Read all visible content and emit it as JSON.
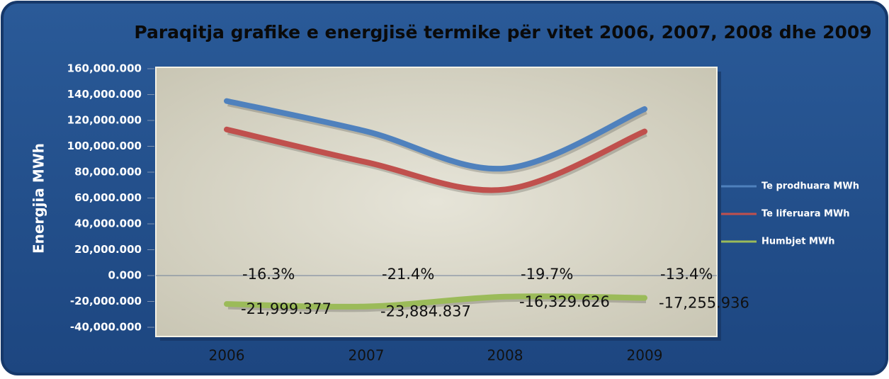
{
  "chart_data": {
    "type": "line",
    "title": "Paraqitja grafike e energjisë termike për vitet 2006, 2007, 2008 dhe 2009",
    "y_label": "Energjia MWh",
    "categories": [
      "2006",
      "2007",
      "2008",
      "2009"
    ],
    "series": [
      {
        "name": "Te prodhuara MWh",
        "color": "#4f81bd",
        "values": [
          135000,
          111600,
          82900,
          128800
        ]
      },
      {
        "name": "Te liferuara MWh",
        "color": "#c0504d",
        "values": [
          113000,
          87700,
          66600,
          111500
        ]
      },
      {
        "name": "Humbjet MWh",
        "color": "#9bbb59",
        "values": [
          -21999.377,
          -23884.837,
          -16329.626,
          -17255.936
        ],
        "value_labels": [
          "-21,999.377",
          "-23,884.837",
          "-16,329.626",
          "-17,255.936"
        ]
      }
    ],
    "annotations": [
      "-16.3%",
      "-21.4%",
      "-19.7%",
      "-13.4%"
    ],
    "ylim": [
      -40000,
      160000
    ],
    "yticks": [
      {
        "value": -40000,
        "label": "-40,000.000"
      },
      {
        "value": -20000,
        "label": "-20,000.000"
      },
      {
        "value": 0,
        "label": "0.000"
      },
      {
        "value": 20000,
        "label": "20,000.000"
      },
      {
        "value": 40000,
        "label": "40,000.000"
      },
      {
        "value": 60000,
        "label": "60,000.000"
      },
      {
        "value": 80000,
        "label": "80,000.000"
      },
      {
        "value": 100000,
        "label": "100,000.000"
      },
      {
        "value": 120000,
        "label": "120,000.000"
      },
      {
        "value": 140000,
        "label": "140,000.000"
      },
      {
        "value": 160000,
        "label": "160,000.000"
      }
    ],
    "grid": false,
    "legend": "right",
    "smooth": true
  }
}
